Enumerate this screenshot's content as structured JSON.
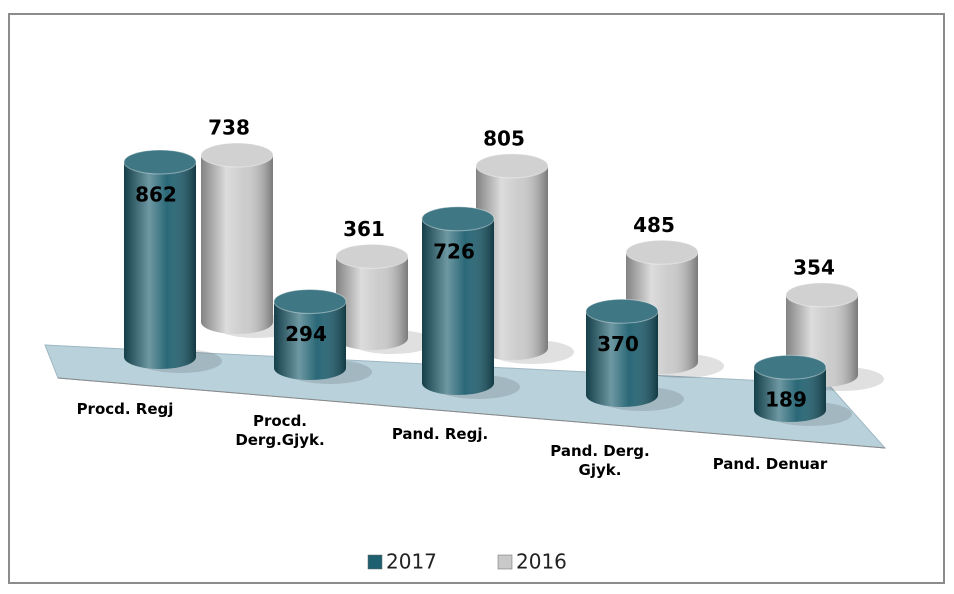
{
  "chart_data": {
    "type": "cylinder3d",
    "categories": [
      "Procd. Regj",
      "Procd. Derg.Gjyk.",
      "Pand. Regj.",
      "Pand. Derg. Gjyk.",
      "Pand. Denuar"
    ],
    "series": [
      {
        "name": "2017",
        "color": "#1f6070",
        "values": [
          862,
          294,
          726,
          370,
          189
        ]
      },
      {
        "name": "2016",
        "color": "#c9c9c9",
        "values": [
          738,
          361,
          805,
          485,
          354
        ]
      }
    ],
    "legend": "bottom"
  }
}
